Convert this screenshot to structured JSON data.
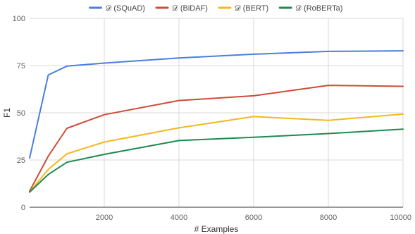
{
  "chart_data": {
    "type": "line",
    "title": "",
    "xlabel": "# Examples",
    "ylabel": "F1",
    "xlim": [
      0,
      10000
    ],
    "ylim": [
      0,
      100
    ],
    "x_ticks": [
      2000,
      4000,
      6000,
      8000,
      10000
    ],
    "x_tick_labels": [
      "2000",
      "4000",
      "6000",
      "8000",
      "10000"
    ],
    "y_ticks": [
      0,
      25,
      50,
      75,
      100
    ],
    "y_tick_labels": [
      "0",
      "25",
      "50",
      "75",
      "100"
    ],
    "grid": true,
    "legend_position": "top-center",
    "series": [
      {
        "name": "𝒟 (SQuAD)",
        "color": "#4a7fdc",
        "x": [
          0,
          500,
          1000,
          2000,
          4000,
          6000,
          8000,
          10000
        ],
        "y": [
          26,
          70,
          74.7,
          76.3,
          79,
          81,
          82.5,
          82.8
        ]
      },
      {
        "name": "𝒟 (BiDAF)",
        "color": "#d14a38",
        "x": [
          0,
          500,
          1000,
          2000,
          4000,
          6000,
          8000,
          10000
        ],
        "y": [
          8.5,
          27,
          41.8,
          49,
          56.5,
          59,
          64.5,
          64
        ]
      },
      {
        "name": "𝒟 (BERT)",
        "color": "#f2b81c",
        "x": [
          0,
          500,
          1000,
          2000,
          4000,
          6000,
          8000,
          10000
        ],
        "y": [
          8,
          20,
          28.3,
          34.5,
          42,
          48,
          46,
          49.3
        ]
      },
      {
        "name": "𝒟 (RoBERTa)",
        "color": "#1f8a4f",
        "x": [
          0,
          500,
          1000,
          2000,
          4000,
          6000,
          8000,
          10000
        ],
        "y": [
          8,
          17.3,
          23.8,
          28,
          35.3,
          37,
          39,
          41.3
        ]
      }
    ]
  }
}
